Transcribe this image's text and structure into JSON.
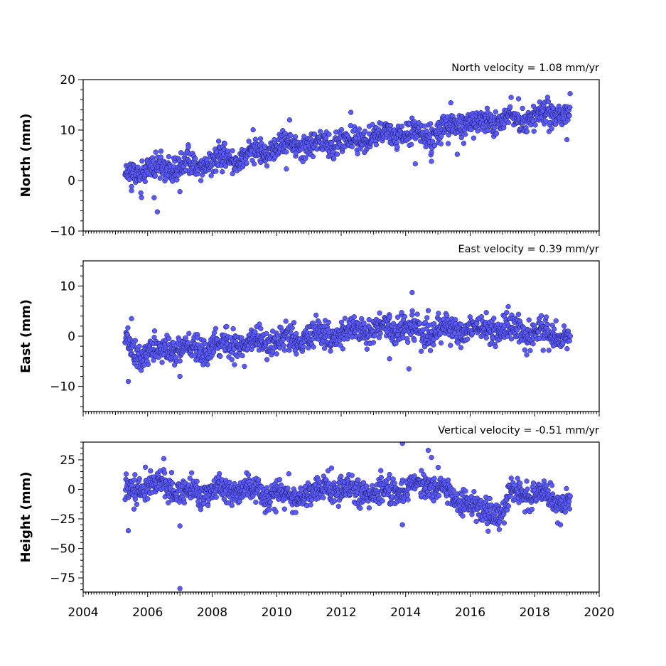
{
  "chart_data": [
    {
      "type": "scatter",
      "title": "North velocity = 1.08 mm/yr",
      "ylabel": "North (mm)",
      "ylim": [
        -10,
        20
      ],
      "yticks": [
        -10,
        0,
        10,
        20
      ],
      "ytick_labels": [
        "−10",
        "0",
        "10",
        "20"
      ],
      "xlim": [
        2004,
        2020
      ],
      "color": "#5a5aff",
      "edge_color": "#1a1a55",
      "series": [
        {
          "x_range": [
            2005.3,
            2019.1
          ],
          "trend": [
            [
              2005.3,
              1.5
            ],
            [
              2007.0,
              2.6
            ],
            [
              2009.0,
              4.8
            ],
            [
              2010.5,
              7.0
            ],
            [
              2012.0,
              7.6
            ],
            [
              2013.5,
              9.2
            ],
            [
              2015.0,
              9.4
            ],
            [
              2015.5,
              11.0
            ],
            [
              2017.0,
              12.0
            ],
            [
              2019.1,
              13.5
            ]
          ],
          "scatter_sd": 1.2,
          "outliers": [
            [
              2006.3,
              -6.2
            ],
            [
              2006.2,
              -3.4
            ],
            [
              2005.5,
              -2.0
            ],
            [
              2008.2,
              7.8
            ],
            [
              2010.4,
              12.0
            ],
            [
              2012.3,
              13.5
            ],
            [
              2014.3,
              3.3
            ],
            [
              2014.8,
              3.8
            ],
            [
              2015.6,
              5.2
            ],
            [
              2015.4,
              15.4
            ],
            [
              2018.4,
              16.5
            ],
            [
              2017.5,
              16.2
            ],
            [
              2019.0,
              8.1
            ],
            [
              2007.0,
              -2.2
            ],
            [
              2010.3,
              2.3
            ]
          ]
        }
      ]
    },
    {
      "type": "scatter",
      "title": "East velocity = 0.39 mm/yr",
      "ylabel": "East (mm)",
      "ylim": [
        -15,
        15
      ],
      "yticks": [
        -10,
        0,
        10
      ],
      "ytick_labels": [
        "−10",
        "0",
        "10"
      ],
      "xlim": [
        2004,
        2020
      ],
      "color": "#5a5aff",
      "edge_color": "#1a1a55",
      "series": [
        {
          "x_range": [
            2005.3,
            2019.1
          ],
          "trend": [
            [
              2005.3,
              -1.0
            ],
            [
              2005.8,
              -3.5
            ],
            [
              2006.5,
              -2.8
            ],
            [
              2008.0,
              -2.0
            ],
            [
              2010.0,
              -1.0
            ],
            [
              2012.0,
              0.5
            ],
            [
              2013.5,
              1.8
            ],
            [
              2014.5,
              1.0
            ],
            [
              2016.5,
              1.5
            ],
            [
              2019.1,
              0.2
            ]
          ],
          "scatter_sd": 1.3,
          "outliers": [
            [
              2005.4,
              -9.0
            ],
            [
              2005.5,
              3.5
            ],
            [
              2007.0,
              -8.0
            ],
            [
              2014.2,
              8.7
            ],
            [
              2014.1,
              -6.5
            ],
            [
              2014.7,
              5.1
            ],
            [
              2013.5,
              -4.5
            ],
            [
              2016.5,
              4.7
            ],
            [
              2005.8,
              -6.8
            ],
            [
              2009.0,
              -6.0
            ]
          ]
        }
      ]
    },
    {
      "type": "scatter",
      "title": "Vertical velocity = -0.51 mm/yr",
      "ylabel": "Height (mm)",
      "ylim": [
        -87,
        40
      ],
      "yticks": [
        -75,
        -50,
        -25,
        0,
        25
      ],
      "ytick_labels": [
        "−75",
        "−50",
        "−25",
        "0",
        "25"
      ],
      "xlim": [
        2004,
        2020
      ],
      "xticks": [
        2004,
        2006,
        2008,
        2010,
        2012,
        2014,
        2016,
        2018,
        2020
      ],
      "xtick_labels": [
        "2004",
        "2006",
        "2008",
        "2010",
        "2012",
        "2014",
        "2016",
        "2018",
        "2020"
      ],
      "color": "#5a5aff",
      "edge_color": "#1a1a55",
      "series": [
        {
          "x_range": [
            2005.3,
            2019.1
          ],
          "trend": [
            [
              2005.3,
              0.0
            ],
            [
              2006.5,
              5.0
            ],
            [
              2007.0,
              -3.0
            ],
            [
              2009.0,
              0.0
            ],
            [
              2010.5,
              -8.0
            ],
            [
              2011.5,
              2.0
            ],
            [
              2013.0,
              -3.0
            ],
            [
              2014.0,
              0.0
            ],
            [
              2014.7,
              8.0
            ],
            [
              2015.5,
              -8.0
            ],
            [
              2016.3,
              -18.0
            ],
            [
              2017.0,
              -20.0
            ],
            [
              2017.3,
              -3.0
            ],
            [
              2018.5,
              -6.0
            ],
            [
              2019.1,
              -12.0
            ]
          ],
          "scatter_sd": 5.5,
          "outliers": [
            [
              2005.4,
              -35.0
            ],
            [
              2007.0,
              -84.0
            ],
            [
              2007.0,
              -31.0
            ],
            [
              2013.9,
              39.0
            ],
            [
              2014.7,
              33.0
            ],
            [
              2014.8,
              27.0
            ],
            [
              2006.5,
              26.0
            ],
            [
              2013.9,
              -30.0
            ],
            [
              2016.9,
              -34.0
            ],
            [
              2018.8,
              -30.0
            ],
            [
              2011.7,
              18.0
            ]
          ]
        }
      ]
    }
  ],
  "x_ticks": {
    "major": [
      2004,
      2006,
      2008,
      2010,
      2012,
      2014,
      2016,
      2018,
      2020
    ],
    "minor_per_year": 12
  }
}
